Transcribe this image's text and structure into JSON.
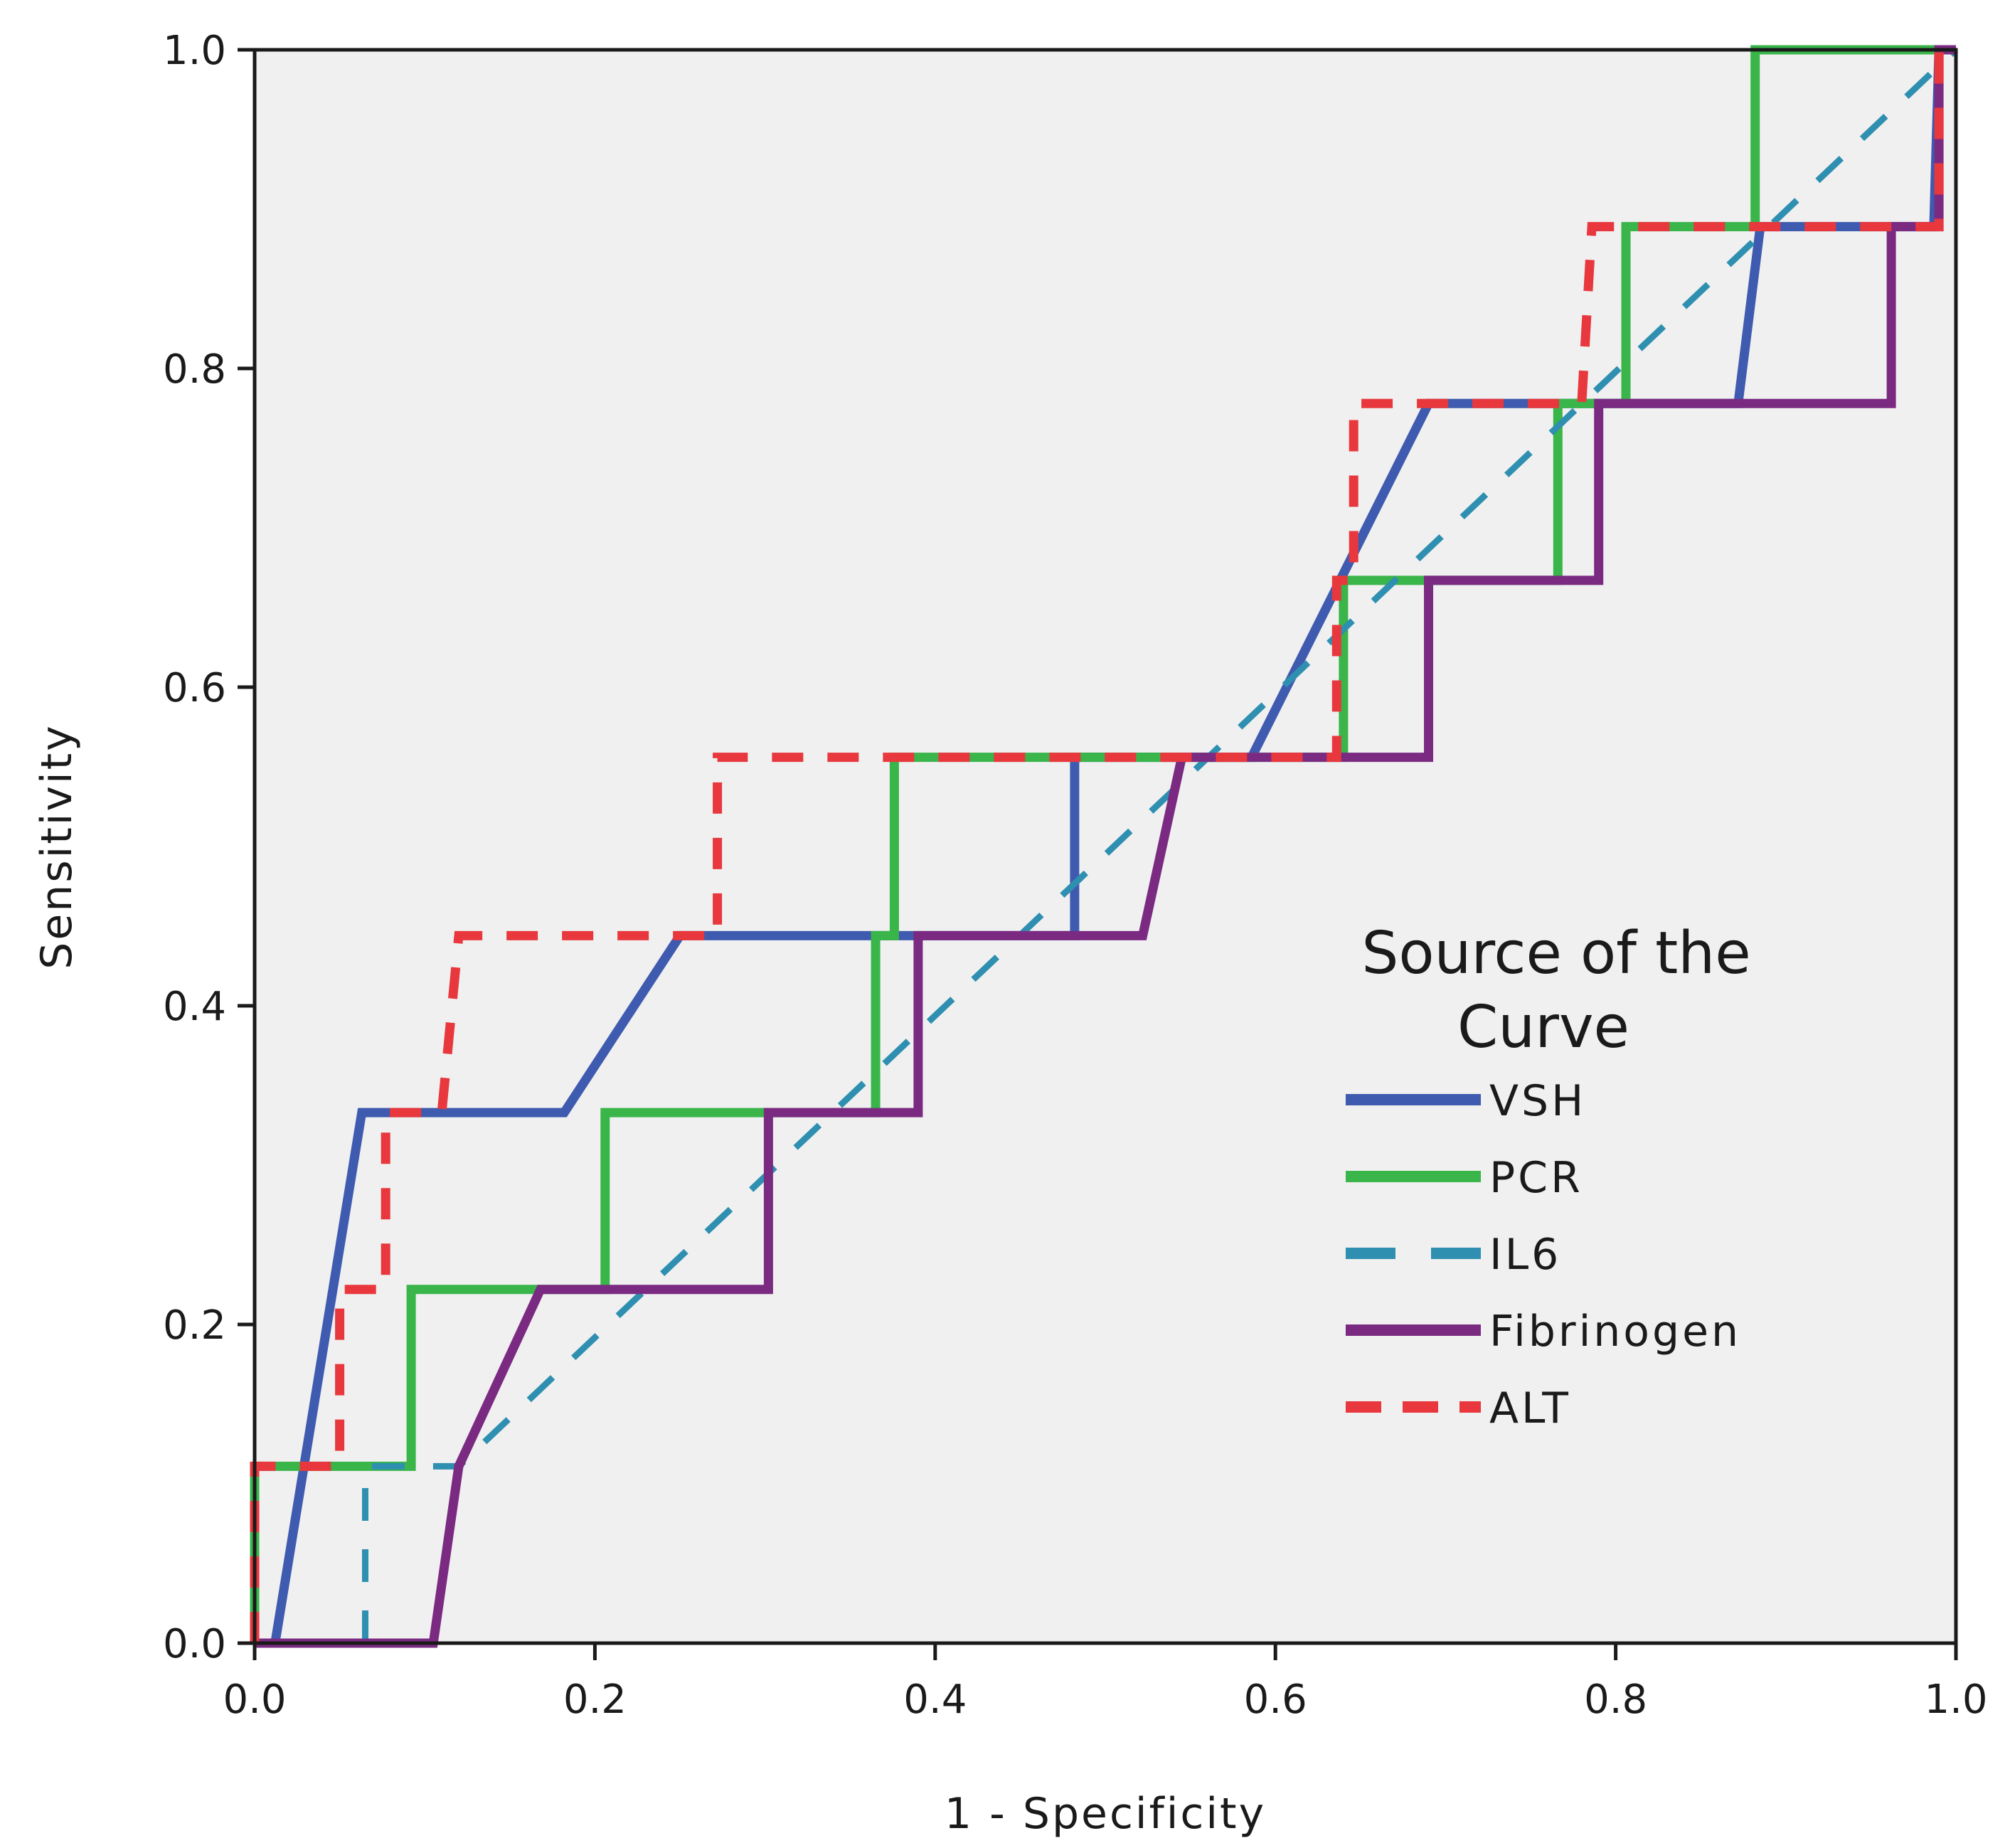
{
  "chart_data": {
    "type": "line",
    "title": "",
    "xlabel": "1 - Specificity",
    "ylabel": "Sensitivity",
    "xlim": [
      0,
      1
    ],
    "ylim": [
      0,
      1
    ],
    "xticks": [
      "0.0",
      "0.2",
      "0.4",
      "0.6",
      "0.8",
      "1.0"
    ],
    "yticks": [
      "0.0",
      "0.2",
      "0.4",
      "0.6",
      "0.8",
      "1.0"
    ],
    "grid": false,
    "legend": {
      "title_line1": "Source of the",
      "title_line2": "Curve",
      "placement": "right-center"
    },
    "series": [
      {
        "name": "VSH",
        "color": "#3f5bb0",
        "style": "solid",
        "points": [
          [
            0,
            0
          ],
          [
            0.012,
            0
          ],
          [
            0.063,
            0.333
          ],
          [
            0.182,
            0.333
          ],
          [
            0.25,
            0.444
          ],
          [
            0.482,
            0.444
          ],
          [
            0.482,
            0.556
          ],
          [
            0.586,
            0.556
          ],
          [
            0.69,
            0.778
          ],
          [
            0.872,
            0.778
          ],
          [
            0.885,
            0.889
          ],
          [
            0.987,
            0.889
          ],
          [
            0.99,
            1.0
          ],
          [
            1.0,
            1.0
          ]
        ]
      },
      {
        "name": "PCR",
        "color": "#39b54a",
        "style": "solid",
        "points": [
          [
            0,
            0
          ],
          [
            0,
            0.111
          ],
          [
            0.092,
            0.111
          ],
          [
            0.092,
            0.222
          ],
          [
            0.206,
            0.222
          ],
          [
            0.206,
            0.333
          ],
          [
            0.365,
            0.333
          ],
          [
            0.365,
            0.444
          ],
          [
            0.376,
            0.444
          ],
          [
            0.376,
            0.556
          ],
          [
            0.64,
            0.556
          ],
          [
            0.64,
            0.667
          ],
          [
            0.766,
            0.667
          ],
          [
            0.766,
            0.778
          ],
          [
            0.806,
            0.778
          ],
          [
            0.806,
            0.889
          ],
          [
            0.882,
            0.889
          ],
          [
            0.882,
            1.0
          ],
          [
            1.0,
            1.0
          ]
        ]
      },
      {
        "name": "IL6",
        "color": "#2e8fb0",
        "style": "dashed",
        "points": [
          [
            0.065,
            0
          ],
          [
            0.065,
            0.111
          ],
          [
            0.092,
            0.111
          ],
          [
            0.12,
            0.111
          ],
          [
            1.0,
            1.0
          ]
        ]
      },
      {
        "name": "Fibrinogen",
        "color": "#7b2a82",
        "style": "solid",
        "points": [
          [
            0,
            0
          ],
          [
            0.105,
            0
          ],
          [
            0.12,
            0.111
          ],
          [
            0.168,
            0.222
          ],
          [
            0.302,
            0.222
          ],
          [
            0.302,
            0.333
          ],
          [
            0.39,
            0.333
          ],
          [
            0.39,
            0.444
          ],
          [
            0.522,
            0.444
          ],
          [
            0.545,
            0.556
          ],
          [
            0.69,
            0.556
          ],
          [
            0.69,
            0.667
          ],
          [
            0.79,
            0.667
          ],
          [
            0.79,
            0.778
          ],
          [
            0.962,
            0.778
          ],
          [
            0.962,
            0.889
          ],
          [
            0.99,
            0.889
          ],
          [
            0.99,
            1.0
          ],
          [
            1.0,
            1.0
          ]
        ]
      },
      {
        "name": "ALT",
        "color": "#e8383d",
        "style": "dashed",
        "points": [
          [
            0,
            0
          ],
          [
            0,
            0.111
          ],
          [
            0.05,
            0.111
          ],
          [
            0.05,
            0.222
          ],
          [
            0.077,
            0.222
          ],
          [
            0.077,
            0.333
          ],
          [
            0.11,
            0.333
          ],
          [
            0.12,
            0.444
          ],
          [
            0.272,
            0.444
          ],
          [
            0.272,
            0.556
          ],
          [
            0.636,
            0.556
          ],
          [
            0.636,
            0.667
          ],
          [
            0.646,
            0.667
          ],
          [
            0.646,
            0.778
          ],
          [
            0.78,
            0.778
          ],
          [
            0.786,
            0.889
          ],
          [
            0.99,
            0.889
          ],
          [
            0.99,
            1.0
          ],
          [
            1.0,
            1.0
          ]
        ]
      }
    ]
  }
}
